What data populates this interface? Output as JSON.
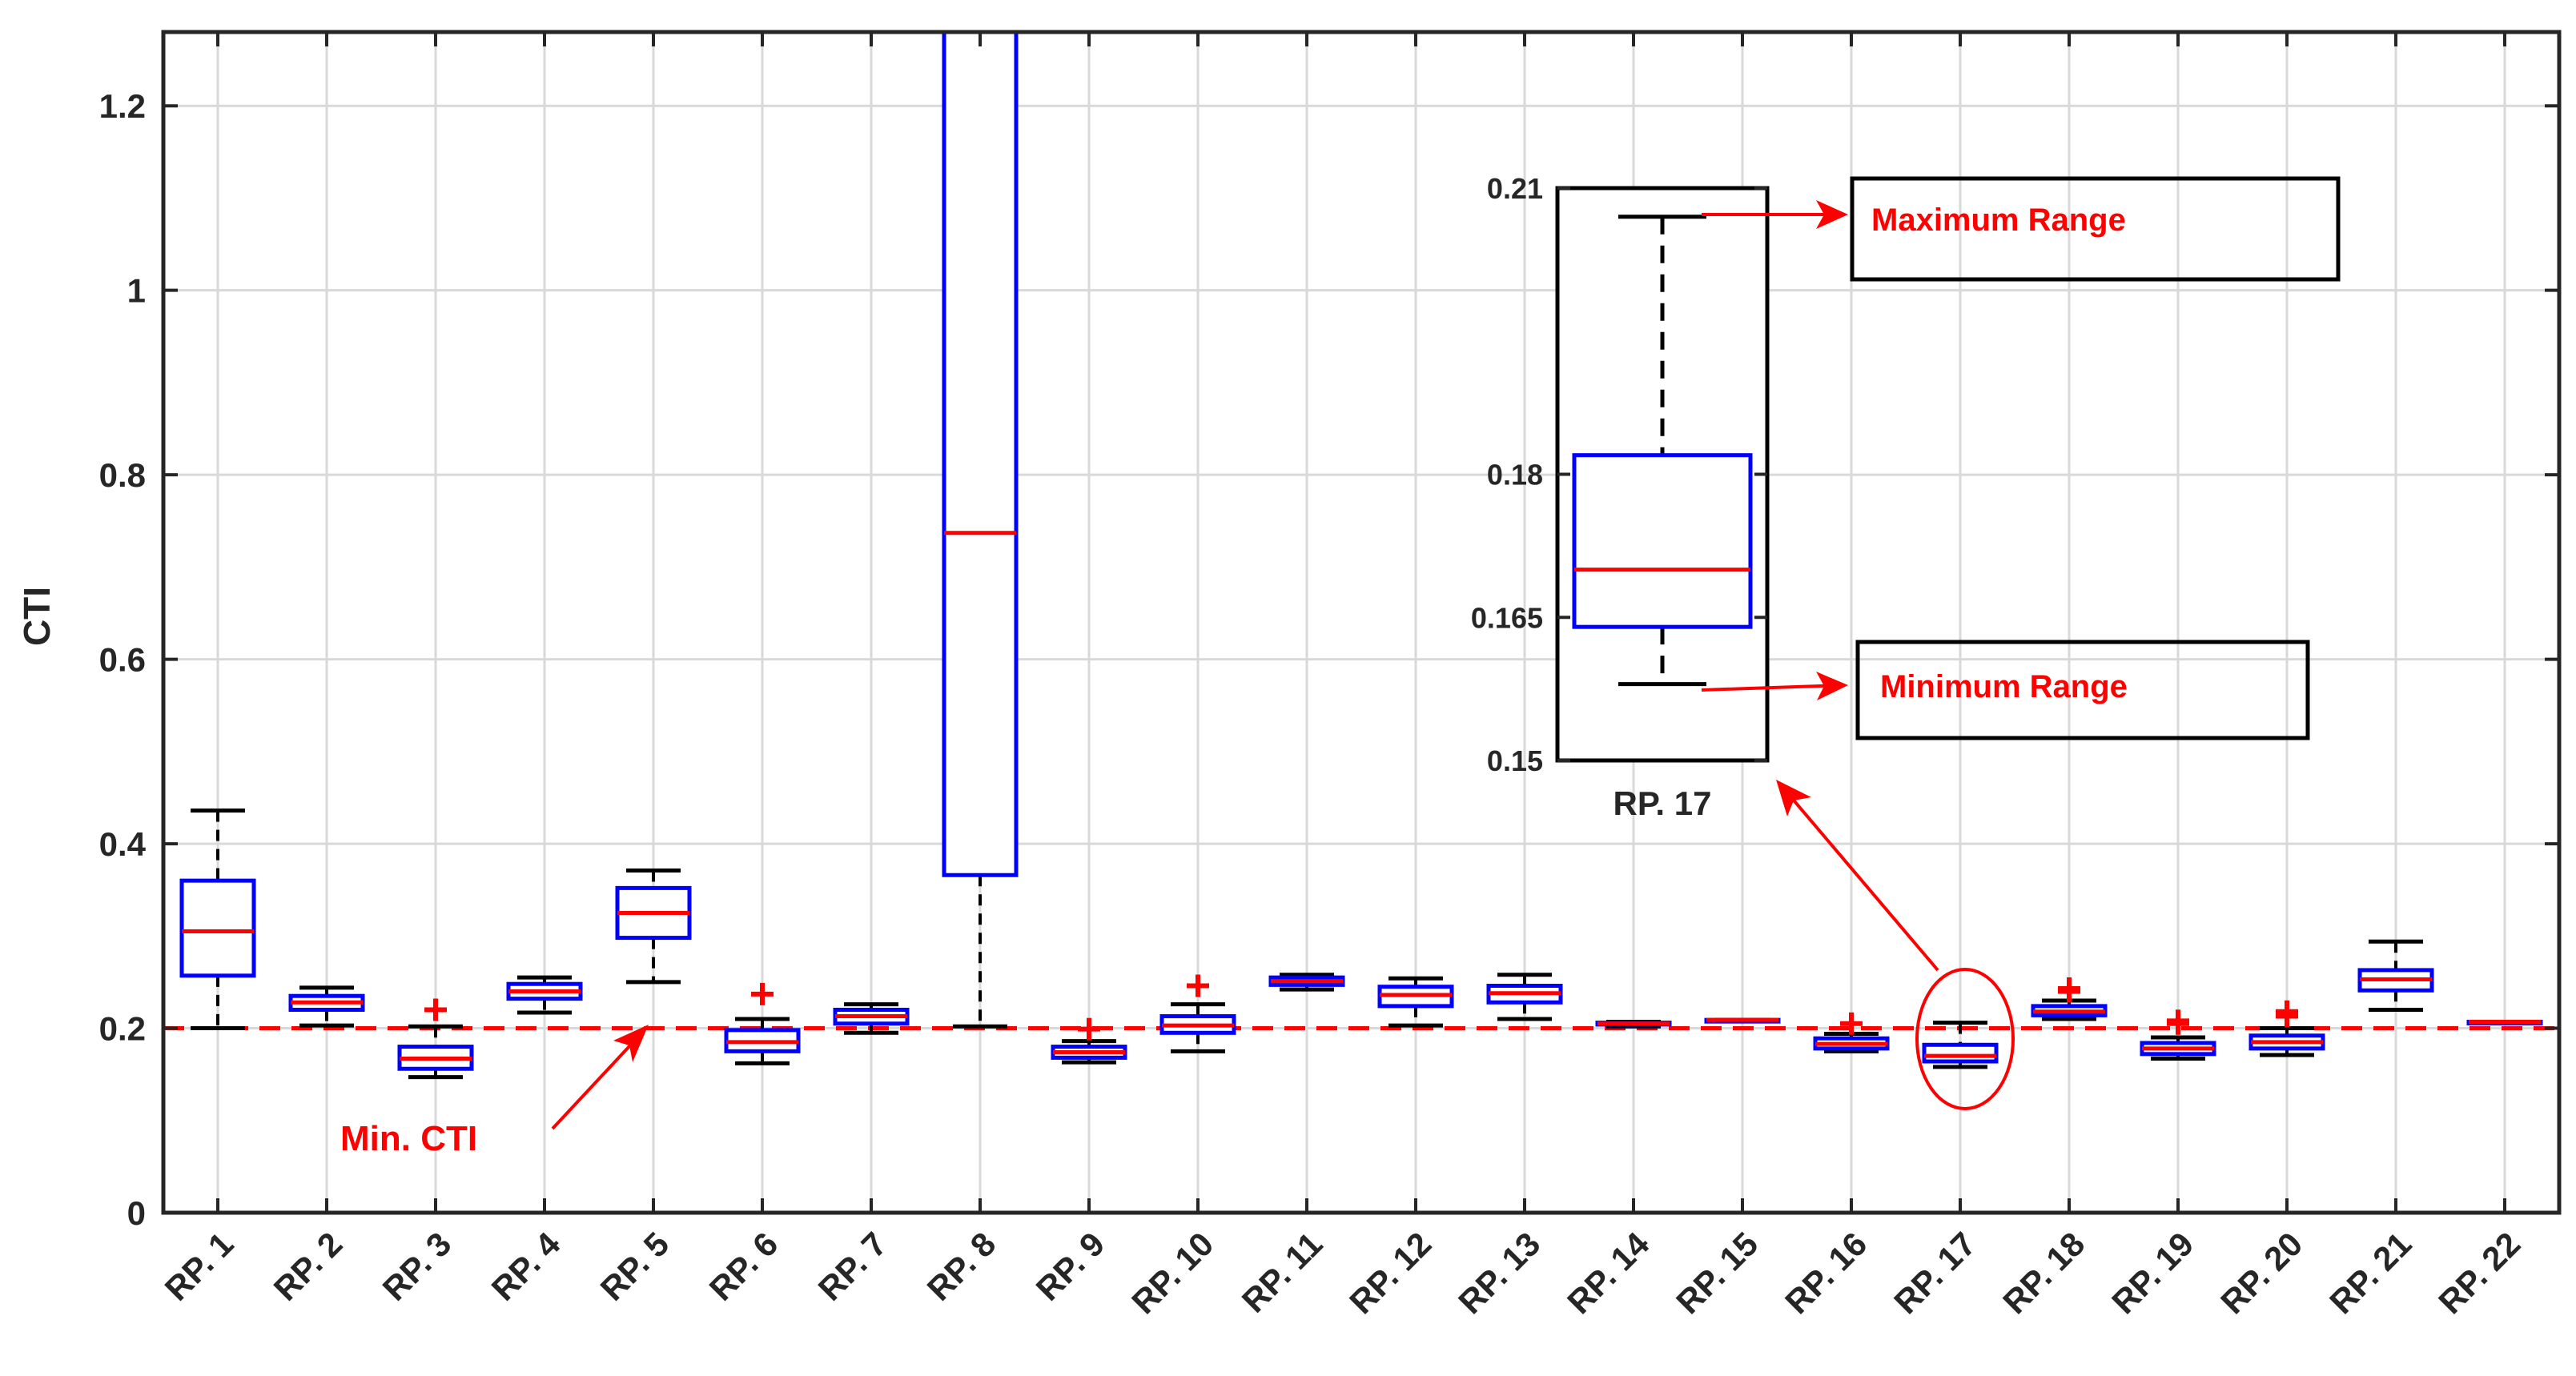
{
  "chart_data": {
    "type": "box",
    "ylabel": "CTI",
    "xlabel": "",
    "title": "",
    "ylim": [
      0,
      1.28
    ],
    "yticks": [
      "0",
      "0.2",
      "0.4",
      "0.6",
      "0.8",
      "1",
      "1.2"
    ],
    "grid": true,
    "categories": [
      "RP. 1",
      "RP. 2",
      "RP. 3",
      "RP. 4",
      "RP. 5",
      "RP. 6",
      "RP. 7",
      "RP. 8",
      "RP. 9",
      "RP. 10",
      "RP. 11",
      "RP. 12",
      "RP. 13",
      "RP. 14",
      "RP. 15",
      "RP. 16",
      "RP. 17",
      "RP. 18",
      "RP. 19",
      "RP. 20",
      "RP. 21",
      "RP. 22"
    ],
    "boxes": [
      {
        "whisker_low": 0.2,
        "q1": 0.257,
        "median": 0.305,
        "q3": 0.36,
        "whisker_high": 0.436,
        "outliers": []
      },
      {
        "whisker_low": 0.203,
        "q1": 0.22,
        "median": 0.228,
        "q3": 0.235,
        "whisker_high": 0.244,
        "outliers": []
      },
      {
        "whisker_low": 0.147,
        "q1": 0.156,
        "median": 0.167,
        "q3": 0.18,
        "whisker_high": 0.202,
        "outliers": [
          0.22
        ]
      },
      {
        "whisker_low": 0.217,
        "q1": 0.232,
        "median": 0.24,
        "q3": 0.248,
        "whisker_high": 0.255,
        "outliers": []
      },
      {
        "whisker_low": 0.25,
        "q1": 0.298,
        "median": 0.325,
        "q3": 0.352,
        "whisker_high": 0.371,
        "outliers": []
      },
      {
        "whisker_low": 0.162,
        "q1": 0.175,
        "median": 0.185,
        "q3": 0.198,
        "whisker_high": 0.21,
        "outliers": [
          0.237
        ]
      },
      {
        "whisker_low": 0.195,
        "q1": 0.205,
        "median": 0.213,
        "q3": 0.22,
        "whisker_high": 0.226,
        "outliers": []
      },
      {
        "whisker_low": 0.202,
        "q1": 0.366,
        "median": 0.737,
        "q3": 1.28,
        "whisker_high": 1.28,
        "outliers": []
      },
      {
        "whisker_low": 0.163,
        "q1": 0.168,
        "median": 0.174,
        "q3": 0.18,
        "whisker_high": 0.186,
        "outliers": [
          0.199
        ]
      },
      {
        "whisker_low": 0.175,
        "q1": 0.195,
        "median": 0.203,
        "q3": 0.213,
        "whisker_high": 0.226,
        "outliers": [
          0.246
        ]
      },
      {
        "whisker_low": 0.242,
        "q1": 0.247,
        "median": 0.251,
        "q3": 0.255,
        "whisker_high": 0.258,
        "outliers": []
      },
      {
        "whisker_low": 0.203,
        "q1": 0.224,
        "median": 0.236,
        "q3": 0.245,
        "whisker_high": 0.254,
        "outliers": []
      },
      {
        "whisker_low": 0.21,
        "q1": 0.228,
        "median": 0.238,
        "q3": 0.246,
        "whisker_high": 0.258,
        "outliers": []
      },
      {
        "whisker_low": 0.202,
        "q1": 0.204,
        "median": 0.205,
        "q3": 0.206,
        "whisker_high": 0.207,
        "outliers": []
      },
      {
        "whisker_low": 0.209,
        "q1": 0.209,
        "median": 0.209,
        "q3": 0.209,
        "whisker_high": 0.209,
        "outliers": []
      },
      {
        "whisker_low": 0.175,
        "q1": 0.178,
        "median": 0.183,
        "q3": 0.189,
        "whisker_high": 0.194,
        "outliers": [
          0.205
        ]
      },
      {
        "whisker_low": 0.158,
        "q1": 0.164,
        "median": 0.17,
        "q3": 0.182,
        "whisker_high": 0.206,
        "outliers": []
      },
      {
        "whisker_low": 0.21,
        "q1": 0.214,
        "median": 0.218,
        "q3": 0.224,
        "whisker_high": 0.23,
        "outliers": [
          0.24,
          0.243
        ]
      },
      {
        "whisker_low": 0.167,
        "q1": 0.172,
        "median": 0.178,
        "q3": 0.184,
        "whisker_high": 0.19,
        "outliers": [
          0.205,
          0.208
        ]
      },
      {
        "whisker_low": 0.171,
        "q1": 0.178,
        "median": 0.185,
        "q3": 0.192,
        "whisker_high": 0.2,
        "outliers": [
          0.213,
          0.218
        ]
      },
      {
        "whisker_low": 0.22,
        "q1": 0.241,
        "median": 0.253,
        "q3": 0.263,
        "whisker_high": 0.294,
        "outliers": []
      },
      {
        "whisker_low": 0.206,
        "q1": 0.206,
        "median": 0.207,
        "q3": 0.207,
        "whisker_high": 0.207,
        "outliers": []
      }
    ],
    "reference_line": {
      "value": 0.2,
      "color": "#ff0000",
      "style": "dashed"
    },
    "annotations": {
      "min_cti": "Min. CTI",
      "max_range": "Maximum Range",
      "min_range": "Minimum Range"
    },
    "inset": {
      "category": "RP. 17",
      "ylim": [
        0.15,
        0.21
      ],
      "yticks": [
        "0.15",
        "0.165",
        "0.18",
        "0.21"
      ],
      "box": {
        "whisker_low": 0.158,
        "q1": 0.164,
        "median": 0.17,
        "q3": 0.182,
        "whisker_high": 0.207
      }
    },
    "colors": {
      "box": "#0000ff",
      "median": "#ff0000",
      "whisker": "#000000",
      "reference": "#ff0000",
      "outlier": "#ff0000"
    }
  }
}
